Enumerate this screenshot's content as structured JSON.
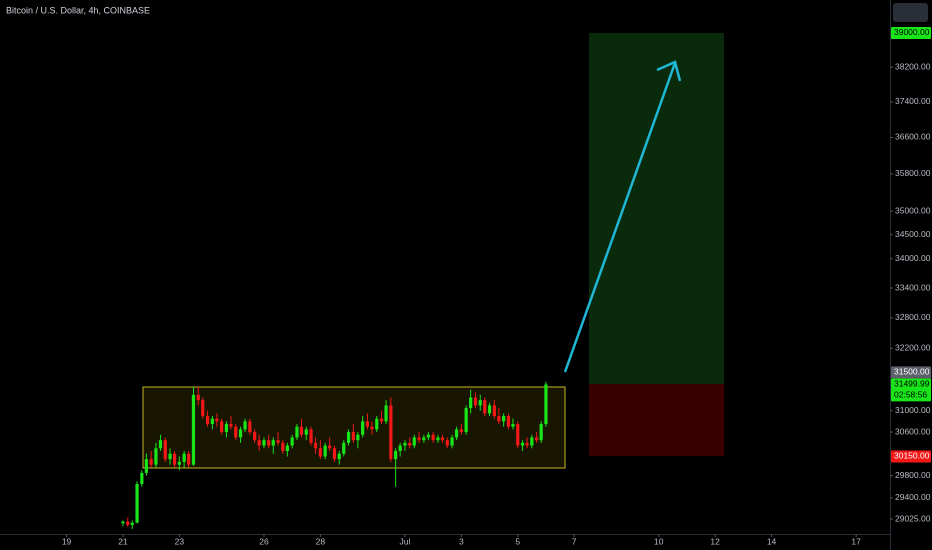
{
  "chart_data": {
    "type": "candlestick",
    "title": "Bitcoin / U.S. Dollar, 4h, COINBASE",
    "log_scale": true,
    "up_color": "#19e619",
    "down_color": "#f21818",
    "xlim": [
      16.64,
      48.2
    ],
    "ylim": [
      28762,
      39790
    ],
    "xticks": [
      19,
      21,
      23,
      26,
      28,
      {
        "value": 31,
        "label": "Jul"
      },
      {
        "value": 33,
        "label": "3"
      },
      {
        "value": 35,
        "label": "5"
      },
      {
        "value": 37,
        "label": "7"
      },
      {
        "value": 40,
        "label": "10"
      },
      {
        "value": 42,
        "label": "12"
      },
      {
        "value": 44,
        "label": "14"
      },
      {
        "value": 47,
        "label": "17"
      }
    ],
    "yticks": [
      {
        "value": 38200,
        "label": "38200.00"
      },
      {
        "value": 37400,
        "label": "37400.00"
      },
      {
        "value": 36600,
        "label": "36600.00"
      },
      {
        "value": 35800,
        "label": "35800.00"
      },
      {
        "value": 35000,
        "label": "35000.00"
      },
      {
        "value": 34500,
        "label": "34500.00"
      },
      {
        "value": 34000,
        "label": "34000.00"
      },
      {
        "value": 33400,
        "label": "33400.00"
      },
      {
        "value": 32800,
        "label": "32800.00"
      },
      {
        "value": 32200,
        "label": "32200.00"
      },
      {
        "value": 31000,
        "label": "31000.00"
      },
      {
        "value": 30600,
        "label": "30600.00"
      },
      {
        "value": 29800,
        "label": "29800.00"
      },
      {
        "value": 29400,
        "label": "29400.00"
      },
      {
        "value": 29025,
        "label": "29025.00"
      }
    ],
    "price_labels": [
      {
        "value": 39000,
        "label": "39000.00",
        "color": "#19e619"
      },
      {
        "value": 31500,
        "label": "31500.00",
        "color": "#5d606b"
      },
      {
        "value": 31499.99,
        "label": "31499.99",
        "countdown": "02:58:56",
        "color": "#19e619"
      },
      {
        "value": 30150,
        "label": "30150.00",
        "color": "#f21818"
      }
    ],
    "x": [
      21,
      21.17,
      21.33,
      21.5,
      21.67,
      21.83,
      22,
      22.17,
      22.33,
      22.5,
      22.67,
      22.83,
      23,
      23.17,
      23.33,
      23.5,
      23.67,
      23.83,
      24,
      24.17,
      24.33,
      24.5,
      24.67,
      24.83,
      25,
      25.17,
      25.33,
      25.5,
      25.67,
      25.83,
      26,
      26.17,
      26.33,
      26.5,
      26.67,
      26.83,
      27,
      27.17,
      27.33,
      27.5,
      27.67,
      27.83,
      28,
      28.17,
      28.33,
      28.5,
      28.67,
      28.83,
      29,
      29.17,
      29.33,
      29.5,
      29.67,
      29.83,
      30,
      30.17,
      30.33,
      30.5,
      30.67,
      30.83,
      31,
      31.17,
      31.33,
      31.5,
      31.67,
      31.83,
      32,
      32.17,
      32.33,
      32.5,
      32.67,
      32.83,
      33,
      33.17,
      33.33,
      33.5,
      33.67,
      33.83,
      34,
      34.17,
      34.33,
      34.5,
      34.67,
      34.83,
      35,
      35.17,
      35.33,
      35.5,
      35.67,
      35.83,
      36
    ],
    "open": [
      28950,
      28980,
      28920,
      28960,
      29650,
      29850,
      30100,
      30000,
      30300,
      30450,
      30100,
      30200,
      30000,
      30050,
      30200,
      30000,
      31300,
      31200,
      30900,
      30750,
      30850,
      30800,
      30600,
      30750,
      30700,
      30500,
      30650,
      30800,
      30600,
      30450,
      30350,
      30450,
      30350,
      30450,
      30400,
      30250,
      30350,
      30500,
      30700,
      30550,
      30650,
      30400,
      30300,
      30150,
      30350,
      30300,
      30100,
      30200,
      30400,
      30600,
      30450,
      30550,
      30800,
      30700,
      30650,
      30850,
      30800,
      31100,
      30100,
      30250,
      30350,
      30400,
      30350,
      30500,
      30450,
      30500,
      30550,
      30450,
      30500,
      30450,
      30350,
      30500,
      30650,
      30600,
      31050,
      31250,
      31100,
      31200,
      30950,
      31100,
      30900,
      30800,
      30900,
      30700,
      30750,
      30350,
      30400,
      30350,
      30500,
      30450,
      30750
    ],
    "high": [
      29000,
      29050,
      29000,
      29700,
      29900,
      30200,
      30250,
      30400,
      30550,
      30500,
      30300,
      30250,
      30150,
      30250,
      30250,
      31450,
      31450,
      31250,
      31000,
      30900,
      30950,
      30850,
      30800,
      30900,
      30750,
      30700,
      30850,
      30850,
      30650,
      30550,
      30500,
      30550,
      30500,
      30600,
      30450,
      30400,
      30550,
      30750,
      30850,
      30700,
      30700,
      30500,
      30450,
      30400,
      30500,
      30350,
      30250,
      30450,
      30650,
      30750,
      30600,
      30900,
      30950,
      30800,
      30900,
      31000,
      31200,
      31250,
      30300,
      30400,
      30450,
      30500,
      30550,
      30600,
      30550,
      30600,
      30600,
      30550,
      30550,
      30500,
      30550,
      30700,
      30750,
      31100,
      31400,
      31350,
      31300,
      31250,
      31150,
      31200,
      31050,
      30950,
      30950,
      30850,
      30800,
      30450,
      30500,
      30550,
      30600,
      30800,
      31550
    ],
    "low": [
      28900,
      28880,
      28850,
      28950,
      29600,
      29800,
      29950,
      29950,
      30250,
      30050,
      30000,
      29950,
      29900,
      29950,
      29950,
      29980,
      31100,
      30850,
      30700,
      30650,
      30700,
      30550,
      30500,
      30650,
      30450,
      30400,
      30600,
      30550,
      30400,
      30250,
      30300,
      30300,
      30200,
      30350,
      30200,
      30150,
      30300,
      30450,
      30500,
      30450,
      30350,
      30200,
      30100,
      30100,
      30250,
      30050,
      30000,
      30150,
      30350,
      30400,
      30300,
      30500,
      30650,
      30550,
      30600,
      30750,
      30750,
      30050,
      29600,
      30150,
      30250,
      30300,
      30300,
      30400,
      30400,
      30450,
      30400,
      30400,
      30400,
      30300,
      30300,
      30450,
      30550,
      30550,
      30950,
      31050,
      31000,
      30900,
      30900,
      30850,
      30750,
      30700,
      30650,
      30650,
      30300,
      30250,
      30300,
      30300,
      30400,
      30400,
      30700
    ],
    "close": [
      28980,
      28920,
      28960,
      29650,
      29850,
      30100,
      30000,
      30300,
      30450,
      30100,
      30200,
      30000,
      30050,
      30200,
      30000,
      31300,
      31200,
      30900,
      30750,
      30850,
      30800,
      30600,
      30750,
      30700,
      30500,
      30650,
      30800,
      30600,
      30450,
      30350,
      30450,
      30350,
      30450,
      30400,
      30250,
      30350,
      30500,
      30700,
      30550,
      30650,
      30400,
      30300,
      30150,
      30350,
      30300,
      30100,
      30200,
      30400,
      30600,
      30450,
      30550,
      30800,
      30700,
      30650,
      30850,
      30800,
      31100,
      30100,
      30250,
      30350,
      30400,
      30350,
      30500,
      30450,
      30500,
      30550,
      30450,
      30500,
      30450,
      30350,
      30500,
      30650,
      30600,
      31050,
      31250,
      31100,
      31200,
      30950,
      31100,
      30900,
      30800,
      30900,
      30700,
      30750,
      30350,
      30400,
      30350,
      30500,
      30450,
      30750,
      31500
    ]
  }
}
